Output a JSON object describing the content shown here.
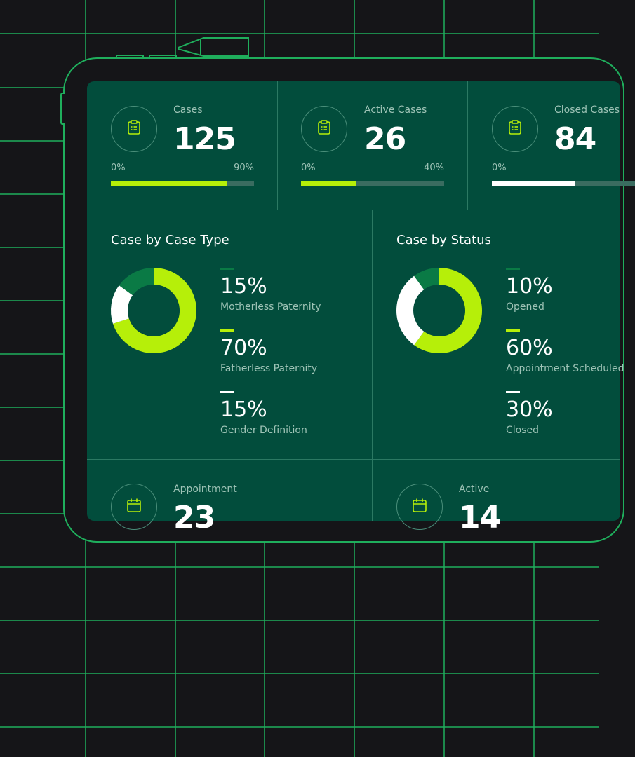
{
  "colors": {
    "background": "#151518",
    "grid": "#1fae5c",
    "panel": "#024d3c",
    "accent": "#b6ef09",
    "dark_green": "#0a7a45",
    "white": "#ffffff"
  },
  "stats": [
    {
      "label": "Cases",
      "value": "125",
      "min": "0%",
      "max": "90%",
      "progress": 0.81,
      "color": "#b6ef09",
      "icon": "clipboard-icon"
    },
    {
      "label": "Active Cases",
      "value": "26",
      "min": "0%",
      "max": "40%",
      "progress": 0.38,
      "color": "#b6ef09",
      "icon": "clipboard-icon"
    },
    {
      "label": "Closed Cases",
      "value": "84",
      "min": "0%",
      "max": "",
      "progress": 0.58,
      "color": "#ffffff",
      "icon": "clipboard-icon"
    }
  ],
  "case_type": {
    "title": "Case by Case Type",
    "items": [
      {
        "pct": "15%",
        "name": "Motherless Paternity",
        "color": "#0a7a45"
      },
      {
        "pct": "70%",
        "name": "Fatherless Paternity",
        "color": "#b6ef09"
      },
      {
        "pct": "15%",
        "name": "Gender Definition",
        "color": "#ffffff"
      }
    ]
  },
  "status": {
    "title": "Case by Status",
    "items": [
      {
        "pct": "10%",
        "name": "Opened",
        "color": "#0a7a45"
      },
      {
        "pct": "60%",
        "name": "Appointment Scheduled",
        "color": "#b6ef09"
      },
      {
        "pct": "30%",
        "name": "Closed",
        "color": "#ffffff"
      }
    ]
  },
  "bottom": [
    {
      "label": "Appointment",
      "value": "23",
      "icon": "calendar-icon"
    },
    {
      "label": "Active",
      "value": "14",
      "icon": "calendar-icon"
    }
  ]
}
